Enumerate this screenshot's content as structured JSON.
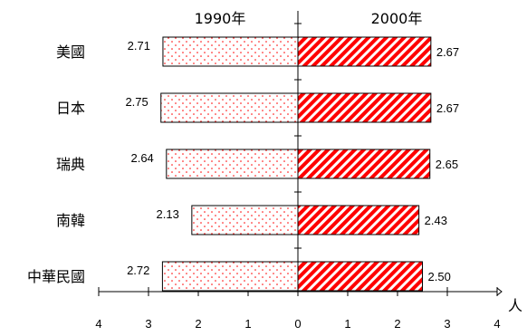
{
  "chart_data": {
    "type": "bar",
    "orientation": "diverging-horizontal",
    "categories": [
      "美國",
      "日本",
      "瑞典",
      "南韓",
      "中華民國"
    ],
    "series": [
      {
        "name": "1990年",
        "side": "left",
        "pattern": "dots",
        "values": [
          2.71,
          2.75,
          2.64,
          2.13,
          2.72
        ]
      },
      {
        "name": "2000年",
        "side": "right",
        "pattern": "diagonal-stripes",
        "values": [
          2.67,
          2.67,
          2.65,
          2.43,
          2.5
        ]
      }
    ],
    "value_labels_left": [
      "2.71",
      "2.75",
      "2.64",
      "2.13",
      "2.72"
    ],
    "value_labels_right": [
      "2.67",
      "2.67",
      "2.65",
      "2.43",
      "2.50"
    ],
    "x_ticks": [
      "4",
      "3",
      "2",
      "1",
      "0",
      "1",
      "2",
      "3",
      "4"
    ],
    "x_unit": "人",
    "xlim": [
      -4,
      4
    ],
    "grid": false,
    "colors": {
      "accent": "#ff0000",
      "axis": "#000000",
      "stripe_bg": "#ffffff"
    }
  }
}
